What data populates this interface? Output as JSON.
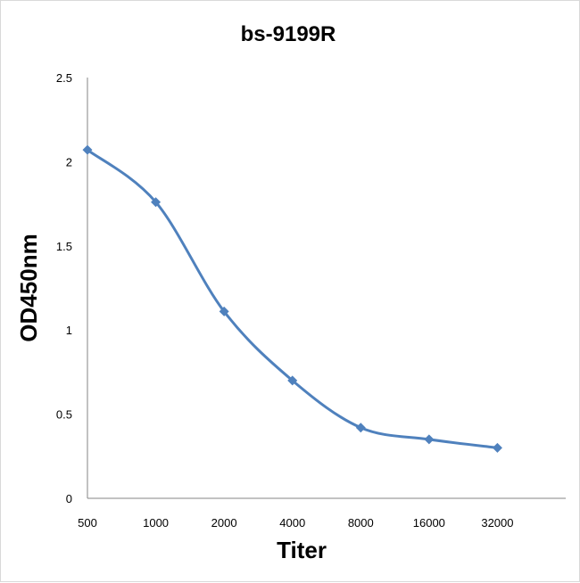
{
  "chart_data": {
    "type": "line",
    "title": "bs-9199R",
    "xlabel": "Titer",
    "ylabel": "OD450nm",
    "categories": [
      "500",
      "1000",
      "2000",
      "4000",
      "8000",
      "16000",
      "32000"
    ],
    "series": [
      {
        "values": [
          2.07,
          1.76,
          1.11,
          0.7,
          0.42,
          0.35,
          0.3
        ]
      }
    ],
    "ylim": [
      0,
      2.5
    ],
    "yticks": [
      "0",
      "0.5",
      "1",
      "1.5",
      "2",
      "2.5"
    ],
    "grid": false,
    "legend": "none",
    "smooth": true,
    "marker": "diamond",
    "colors": {
      "series": "#4f81bd",
      "axis": "#868686",
      "text": "#000000"
    }
  }
}
